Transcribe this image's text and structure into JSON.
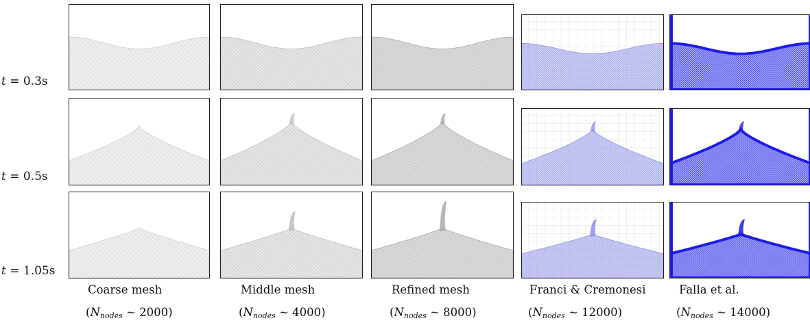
{
  "rows": [
    {
      "label_var": "t",
      "label_eq": " = 0.3s"
    },
    {
      "label_var": "t",
      "label_eq": " = 0.5s"
    },
    {
      "label_var": "t",
      "label_eq": " = 1.05s"
    }
  ],
  "columns": [
    {
      "title": "Coarse mesh",
      "node_var": "N",
      "node_sub": "nodes",
      "node_rest": " ∼ 2000)"
    },
    {
      "title": "Middle mesh",
      "node_var": "N",
      "node_sub": "nodes",
      "node_rest": " ∼ 4000)"
    },
    {
      "title": "Refined mesh",
      "node_var": "N",
      "node_sub": "nodes",
      "node_rest": " ∼ 8000)"
    },
    {
      "title": "Franci & Cremonesi",
      "node_var": "N",
      "node_sub": "nodes",
      "node_rest": " ∼ 12000)"
    },
    {
      "title": "Falla et al.",
      "node_var": "N",
      "node_sub": "nodes",
      "node_rest": " ∼ 14000)"
    }
  ],
  "colors": {
    "coarse": "#cfcfcf",
    "middle": "#bdbdbd",
    "refined": "#a9a9a9",
    "franci": "#8f91e6",
    "falla": "#1c1ce8"
  }
}
